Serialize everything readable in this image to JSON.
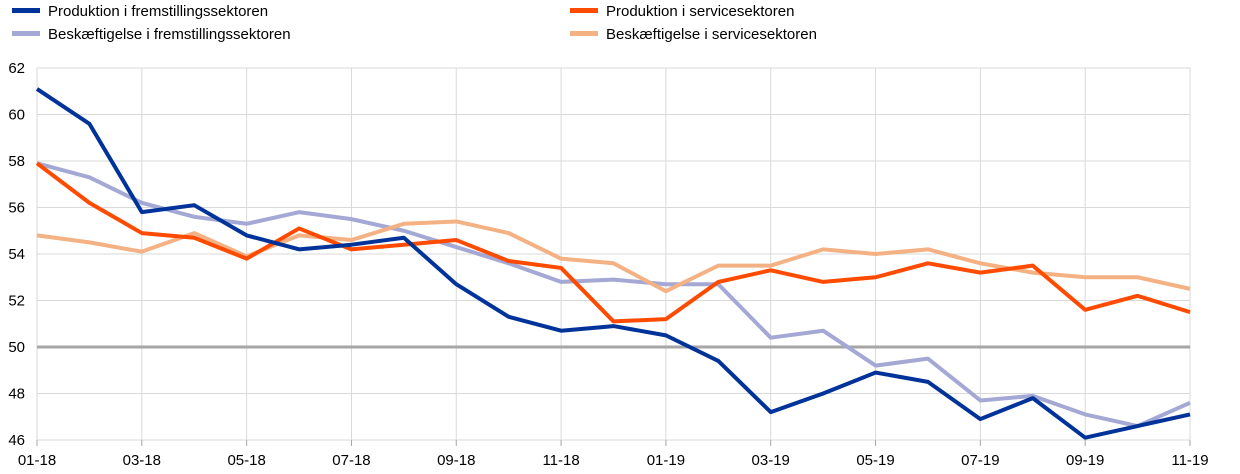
{
  "chart_data": {
    "type": "line",
    "title": "",
    "xlabel": "",
    "ylabel": "",
    "ylim": [
      46,
      62
    ],
    "yticks": [
      "46",
      "48",
      "50",
      "52",
      "54",
      "56",
      "58",
      "60",
      "62"
    ],
    "reference_line": 50,
    "reference_color": "#a6a6a6",
    "grid": true,
    "legend_position": "top",
    "categories": [
      "01-18",
      "02-18",
      "03-18",
      "04-18",
      "05-18",
      "06-18",
      "07-18",
      "08-18",
      "09-18",
      "10-18",
      "11-18",
      "12-18",
      "01-19",
      "02-19",
      "03-19",
      "04-19",
      "05-19",
      "06-19",
      "07-19",
      "08-19",
      "09-19",
      "10-19",
      "11-19"
    ],
    "xtick_labels": [
      "01-18",
      "03-18",
      "05-18",
      "07-18",
      "09-18",
      "11-18",
      "01-19",
      "03-19",
      "05-19",
      "07-19",
      "09-19",
      "11-19"
    ],
    "series": [
      {
        "name": "Produktion i fremstillingssektoren",
        "color": "#003399",
        "values": [
          61.1,
          59.6,
          55.8,
          56.1,
          54.8,
          54.2,
          54.4,
          54.7,
          52.7,
          51.3,
          50.7,
          50.9,
          50.5,
          49.4,
          47.2,
          48.0,
          48.9,
          48.5,
          46.9,
          47.8,
          46.1,
          46.6,
          47.1
        ]
      },
      {
        "name": "Produktion i servicesektoren",
        "color": "#ff4b00",
        "values": [
          57.9,
          56.2,
          54.9,
          54.7,
          53.8,
          55.1,
          54.2,
          54.4,
          54.6,
          53.7,
          53.4,
          51.1,
          51.2,
          52.8,
          53.3,
          52.8,
          53.0,
          53.6,
          53.2,
          53.5,
          51.6,
          52.2,
          51.5
        ]
      },
      {
        "name": "Beskæftigelse i fremstillingssektoren",
        "color": "#a4a8d4",
        "values": [
          57.9,
          57.3,
          56.2,
          55.6,
          55.3,
          55.8,
          55.5,
          55.0,
          54.3,
          53.6,
          52.8,
          52.9,
          52.7,
          52.7,
          50.4,
          50.7,
          49.2,
          49.5,
          47.7,
          47.9,
          47.1,
          46.6,
          47.6
        ]
      },
      {
        "name": "Beskæftigelse i servicesektoren",
        "color": "#f4b183",
        "values": [
          54.8,
          54.5,
          54.1,
          54.9,
          53.9,
          54.8,
          54.6,
          55.3,
          55.4,
          54.9,
          53.8,
          53.6,
          52.4,
          53.5,
          53.5,
          54.2,
          54.0,
          54.2,
          53.6,
          53.2,
          53.0,
          53.0,
          52.5
        ]
      }
    ]
  }
}
